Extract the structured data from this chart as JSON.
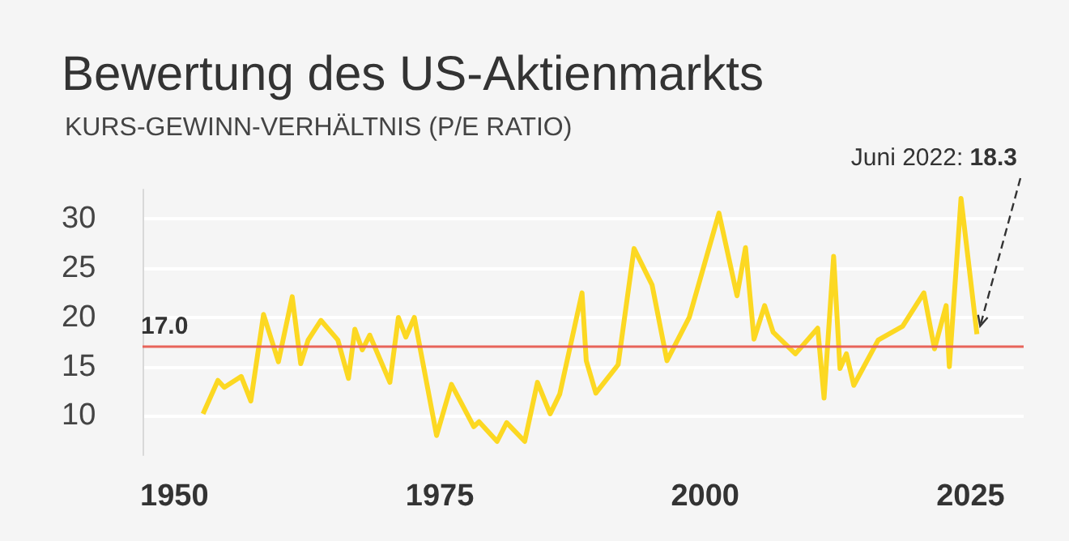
{
  "chart_data": {
    "type": "line",
    "title": "Bewertung des US-Aktienmarkts",
    "subtitle": "KURS-GEWINN-VERHÄLTNIS (P/E RATIO)",
    "x": [
      1952.7,
      1954.1,
      1954.7,
      1956.3,
      1957.2,
      1958.4,
      1959.8,
      1961.1,
      1961.9,
      1962.6,
      1963.8,
      1965.4,
      1966.4,
      1967,
      1967.7,
      1968.4,
      1970.3,
      1971.1,
      1971.8,
      1972.6,
      1974.7,
      1976.1,
      1978.2,
      1978.7,
      1980.4,
      1981.3,
      1983,
      1984.2,
      1985.4,
      1986.3,
      1988.4,
      1988.8,
      1989.7,
      1991.8,
      1993.3,
      1995,
      1996.4,
      1998.5,
      2001.3,
      2003,
      2003.8,
      2004.6,
      2005.6,
      2006.4,
      2008.5,
      2010.6,
      2011.2,
      2012.1,
      2012.7,
      2013.3,
      2014,
      2016.3,
      2018.6,
      2020.6,
      2021.6,
      2022.7,
      2023,
      2024.1,
      2025.6
    ],
    "series": [
      {
        "color": "#fcd822",
        "values": [
          10.2,
          13.6,
          12.9,
          14,
          11.5,
          20.3,
          15.5,
          22.1,
          15.3,
          17.7,
          19.7,
          17.7,
          13.8,
          18.8,
          16.7,
          18.2,
          13.4,
          20,
          18,
          20,
          8,
          13.2,
          8.9,
          9.4,
          7.4,
          9.3,
          7.4,
          13.4,
          10.2,
          12.2,
          22.5,
          15.6,
          12.3,
          15.2,
          27,
          23.3,
          15.6,
          20,
          30.6,
          22.2,
          27.1,
          17.8,
          21.2,
          18.5,
          16.3,
          18.9,
          11.8,
          26.2,
          14.8,
          16.3,
          13.1,
          17.7,
          19.1,
          22.5,
          16.8,
          21.2,
          15,
          32.1,
          18.3
        ]
      }
    ],
    "xlim": [
      1947,
      2030
    ],
    "xticks": [
      1950,
      1975,
      2000,
      2025
    ],
    "ylim": [
      6,
      33
    ],
    "yticks": [
      10,
      15,
      20,
      25,
      30
    ],
    "grid": "y",
    "marker": "none",
    "line_style": "solid",
    "ref_lines": [
      {
        "axis": "y",
        "value": 17.0,
        "label": "17.0",
        "color": "#e8645a"
      }
    ],
    "annotations": [
      {
        "text": "Juni 2022: 18.3",
        "x": 2025.6,
        "y": 18.3
      }
    ]
  }
}
